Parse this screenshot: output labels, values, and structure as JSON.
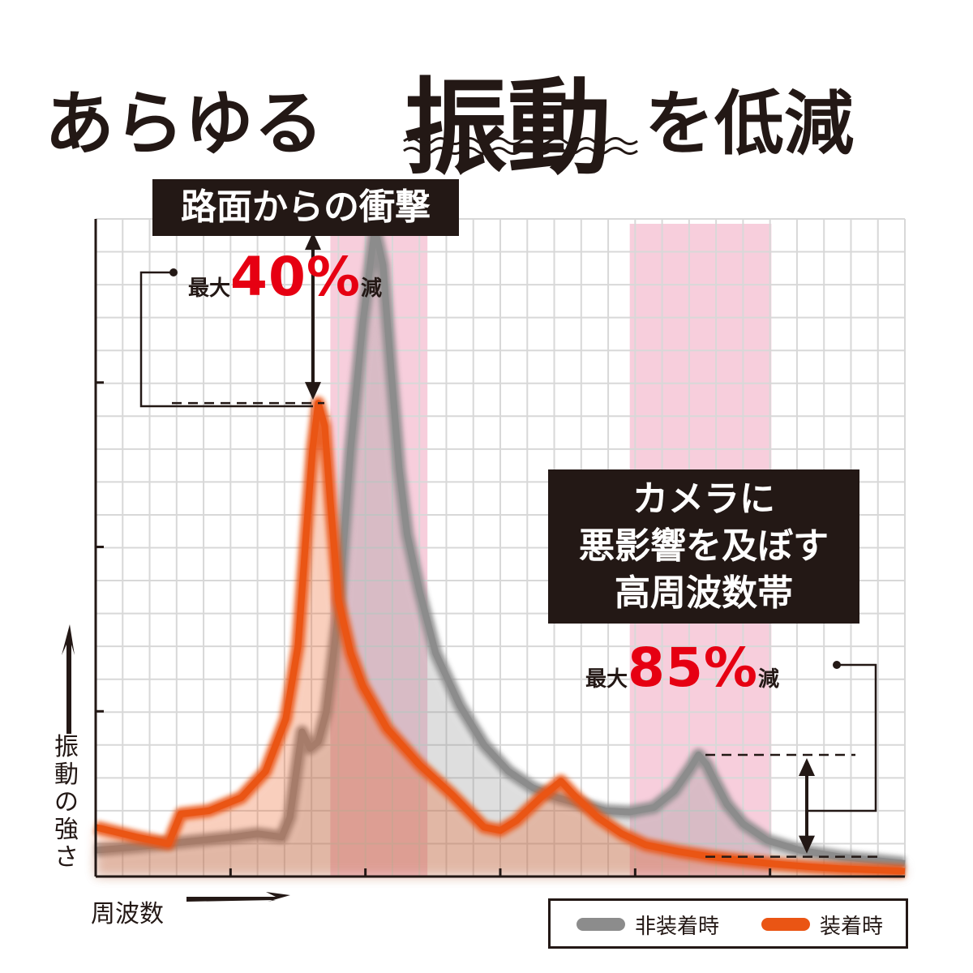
{
  "headline": {
    "prefix": "あらゆる",
    "emphasis": "振動",
    "suffix": "を低減"
  },
  "labels": {
    "road_shock": "路面からの衝撃",
    "high_freq": [
      "カメラに",
      "悪影響を及ぼす",
      "高周波数帯"
    ]
  },
  "reductions": [
    {
      "prefix": "最大",
      "value": "40%",
      "suffix": "減"
    },
    {
      "prefix": "最大",
      "value": "85%",
      "suffix": "減"
    }
  ],
  "axes": {
    "y_label": [
      "振",
      "動",
      "の",
      "強",
      "さ"
    ],
    "x_label": "周波数"
  },
  "legend": [
    {
      "name": "非装着時",
      "color": "#8c8c8c"
    },
    {
      "name": "装着時",
      "color": "#ea5514"
    }
  ],
  "colors": {
    "text": "#231815",
    "accent_red": "#e60012",
    "band_pink": "#f6c6d6",
    "grid": "#d8d8d8"
  },
  "chart_data": {
    "type": "area",
    "xlim": [
      0,
      100
    ],
    "ylim": [
      0,
      100
    ],
    "grid": true,
    "highlight_bands": [
      [
        29,
        41
      ],
      [
        66,
        83.5
      ]
    ],
    "series": [
      {
        "name": "非装着時",
        "color": "#8c8c8c",
        "x": [
          0,
          5,
          9,
          13,
          17,
          20,
          23,
          24,
          25.5,
          26.5,
          27.5,
          28.5,
          30,
          31.5,
          33,
          34.5,
          35.5,
          36.5,
          37.5,
          38.5,
          40,
          42,
          45,
          48,
          51,
          54,
          57,
          60,
          63,
          66,
          69,
          71.5,
          73.5,
          74.5,
          75.5,
          76.5,
          78,
          80,
          83,
          87,
          92,
          96,
          100
        ],
        "y": [
          4,
          4.5,
          5,
          5.5,
          6,
          6.5,
          6,
          9,
          22,
          19.5,
          20.5,
          25,
          40,
          65,
          84,
          98.5,
          93,
          77,
          62,
          52,
          43.5,
          34,
          26,
          20,
          16,
          13.5,
          12,
          11,
          10,
          9.8,
          10.5,
          13,
          16.5,
          18.5,
          17,
          14.5,
          11,
          8,
          5.5,
          4,
          3,
          2.5,
          2
        ]
      },
      {
        "name": "装着時",
        "color": "#ea5514",
        "x": [
          0,
          5,
          9,
          10.5,
          14,
          18,
          21,
          23.5,
          25,
          26,
          26.8,
          27.5,
          28.3,
          29,
          30,
          31.5,
          33,
          36,
          40,
          44,
          46,
          48,
          50,
          52,
          55,
          57,
          57.5,
          59,
          62,
          65,
          68,
          72,
          76,
          80,
          84,
          88,
          92,
          96,
          100
        ],
        "y": [
          7.5,
          6,
          5,
          9.5,
          10,
          12,
          16,
          24,
          35,
          52,
          65,
          72,
          68.5,
          57,
          42,
          34,
          29,
          22.5,
          17,
          12.5,
          10,
          7.5,
          7,
          8.5,
          12,
          14,
          14.5,
          12.5,
          9,
          6.5,
          4.8,
          3.8,
          3,
          2.4,
          1.9,
          1.5,
          1.2,
          1.0,
          0.8
        ]
      }
    ]
  }
}
